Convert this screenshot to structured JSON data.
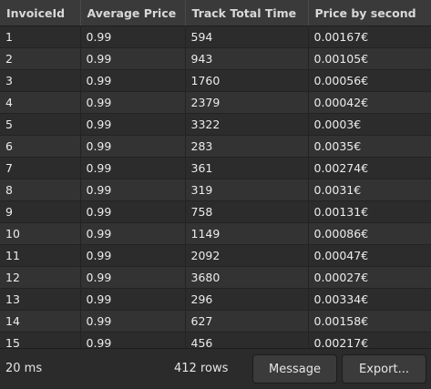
{
  "table": {
    "columns": [
      "InvoiceId",
      "Average Price",
      "Track Total Time",
      "Price by second"
    ],
    "rows": [
      [
        "1",
        "0.99",
        "594",
        "0.00167€"
      ],
      [
        "2",
        "0.99",
        "943",
        "0.00105€"
      ],
      [
        "3",
        "0.99",
        "1760",
        "0.00056€"
      ],
      [
        "4",
        "0.99",
        "2379",
        "0.00042€"
      ],
      [
        "5",
        "0.99",
        "3322",
        "0.0003€"
      ],
      [
        "6",
        "0.99",
        "283",
        "0.0035€"
      ],
      [
        "7",
        "0.99",
        "361",
        "0.00274€"
      ],
      [
        "8",
        "0.99",
        "319",
        "0.0031€"
      ],
      [
        "9",
        "0.99",
        "758",
        "0.00131€"
      ],
      [
        "10",
        "0.99",
        "1149",
        "0.00086€"
      ],
      [
        "11",
        "0.99",
        "2092",
        "0.00047€"
      ],
      [
        "12",
        "0.99",
        "3680",
        "0.00027€"
      ],
      [
        "13",
        "0.99",
        "296",
        "0.00334€"
      ],
      [
        "14",
        "0.99",
        "627",
        "0.00158€"
      ],
      [
        "15",
        "0.99",
        "456",
        "0.00217€"
      ]
    ]
  },
  "status": {
    "elapsed": "20 ms",
    "row_count": "412 rows",
    "message_label": "Message",
    "export_label": "Export..."
  }
}
